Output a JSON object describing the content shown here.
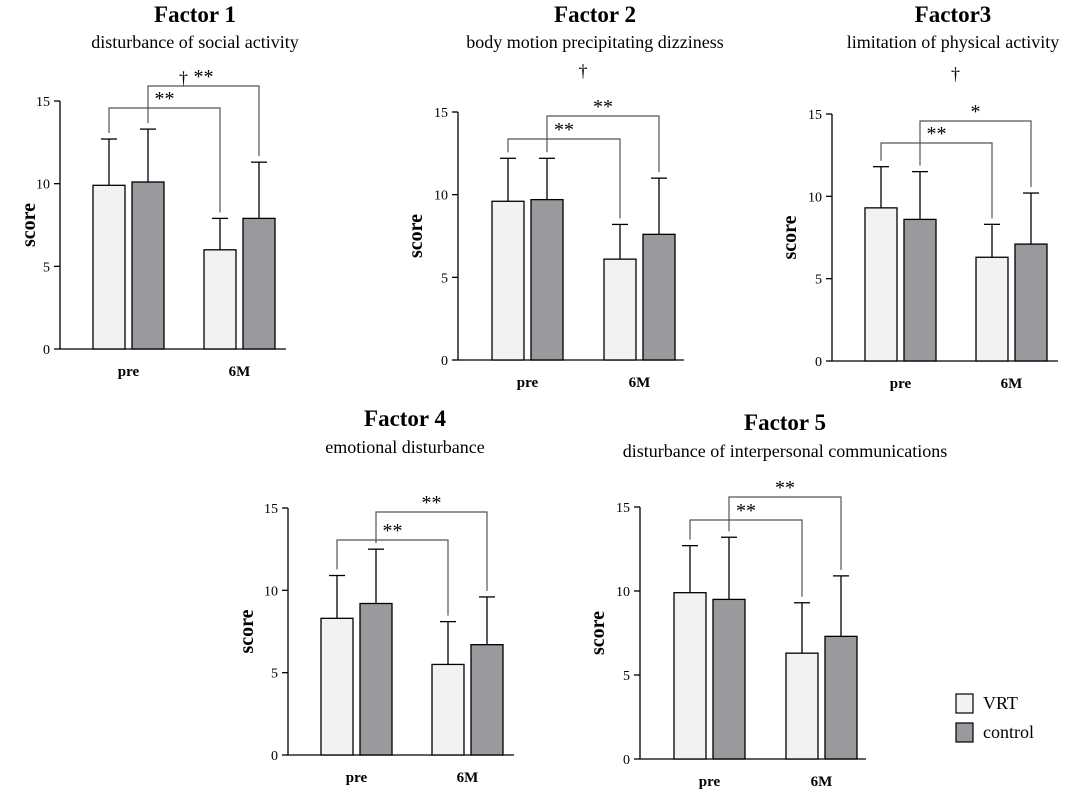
{
  "chart_data": [
    {
      "type": "bar",
      "title": "Factor 1",
      "subtitle": "disturbance of social activity",
      "ylabel": "score",
      "ylim": [
        0,
        15
      ],
      "yticks": [
        0,
        5,
        10,
        15
      ],
      "categories": [
        "pre",
        "6M"
      ],
      "series": [
        {
          "name": "VRT",
          "values": [
            9.9,
            6.0
          ],
          "errors": [
            2.8,
            1.9
          ]
        },
        {
          "name": "control",
          "values": [
            10.1,
            7.9
          ],
          "errors": [
            3.2,
            3.4
          ]
        }
      ],
      "annotations": [
        {
          "from": "pre:VRT",
          "to": "6M:VRT",
          "label": "**",
          "level": 1
        },
        {
          "from": "pre:control",
          "to": "6M:control",
          "label": "**",
          "level": 2
        }
      ],
      "dagger": "†"
    },
    {
      "type": "bar",
      "title": "Factor 2",
      "subtitle": "body motion precipitating dizziness",
      "ylabel": "score",
      "ylim": [
        0,
        15
      ],
      "yticks": [
        0,
        5,
        10,
        15
      ],
      "categories": [
        "pre",
        "6M"
      ],
      "series": [
        {
          "name": "VRT",
          "values": [
            9.6,
            6.1
          ],
          "errors": [
            2.6,
            2.1
          ]
        },
        {
          "name": "control",
          "values": [
            9.7,
            7.6
          ],
          "errors": [
            2.5,
            3.4
          ]
        }
      ],
      "annotations": [
        {
          "from": "pre:VRT",
          "to": "6M:VRT",
          "label": "**",
          "level": 1
        },
        {
          "from": "pre:control",
          "to": "6M:control",
          "label": "**",
          "level": 2
        }
      ],
      "dagger": "†"
    },
    {
      "type": "bar",
      "title": "Factor3",
      "subtitle": "limitation of physical activity",
      "ylabel": "score",
      "ylim": [
        0,
        15
      ],
      "yticks": [
        0,
        5,
        10,
        15
      ],
      "categories": [
        "pre",
        "6M"
      ],
      "series": [
        {
          "name": "VRT",
          "values": [
            9.3,
            6.3
          ],
          "errors": [
            2.5,
            2.0
          ]
        },
        {
          "name": "control",
          "values": [
            8.6,
            7.1
          ],
          "errors": [
            2.9,
            3.1
          ]
        }
      ],
      "annotations": [
        {
          "from": "pre:VRT",
          "to": "6M:VRT",
          "label": "**",
          "level": 1
        },
        {
          "from": "pre:control",
          "to": "6M:control",
          "label": "*",
          "level": 2
        }
      ],
      "dagger": "†"
    },
    {
      "type": "bar",
      "title": "Factor 4",
      "subtitle": "emotional disturbance",
      "ylabel": "score",
      "ylim": [
        0,
        15
      ],
      "yticks": [
        0,
        5,
        10,
        15
      ],
      "categories": [
        "pre",
        "6M"
      ],
      "series": [
        {
          "name": "VRT",
          "values": [
            8.3,
            5.5
          ],
          "errors": [
            2.6,
            2.6
          ]
        },
        {
          "name": "control",
          "values": [
            9.2,
            6.7
          ],
          "errors": [
            3.3,
            2.9
          ]
        }
      ],
      "annotations": [
        {
          "from": "pre:VRT",
          "to": "6M:VRT",
          "label": "**",
          "level": 1
        },
        {
          "from": "pre:control",
          "to": "6M:control",
          "label": "**",
          "level": 2
        }
      ],
      "dagger": ""
    },
    {
      "type": "bar",
      "title": "Factor 5",
      "subtitle": "disturbance of interpersonal communications",
      "ylabel": "score",
      "ylim": [
        0,
        15
      ],
      "yticks": [
        0,
        5,
        10,
        15
      ],
      "categories": [
        "pre",
        "6M"
      ],
      "series": [
        {
          "name": "VRT",
          "values": [
            9.9,
            6.3
          ],
          "errors": [
            2.8,
            3.0
          ]
        },
        {
          "name": "control",
          "values": [
            9.5,
            7.3
          ],
          "errors": [
            3.7,
            3.6
          ]
        }
      ],
      "annotations": [
        {
          "from": "pre:VRT",
          "to": "6M:VRT",
          "label": "**",
          "level": 1
        },
        {
          "from": "pre:control",
          "to": "6M:control",
          "label": "**",
          "level": 2
        }
      ],
      "dagger": ""
    }
  ],
  "legend": {
    "items": [
      {
        "label": "VRT",
        "color": "#f2f2f2"
      },
      {
        "label": "control",
        "color": "#9a9a9e"
      }
    ]
  },
  "colors": {
    "VRT": "#f2f2f2",
    "control": "#9a9a9e",
    "ink": "#000000",
    "bracket": "#555555"
  }
}
